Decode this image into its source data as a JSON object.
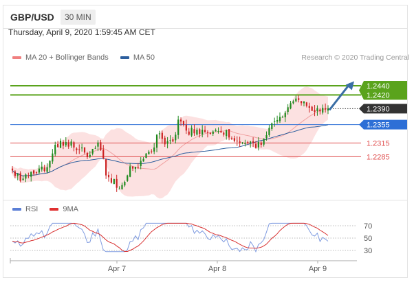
{
  "header": {
    "symbol": "GBP/USD",
    "timeframe": "30 MIN"
  },
  "timestamp": "Thursday, April 9, 2020 1:59:45 AM CET",
  "legend": {
    "items": [
      {
        "label": "MA 20 + Bollinger Bands",
        "color": "#f08080"
      },
      {
        "label": "MA 50",
        "color": "#2d5f9e"
      }
    ],
    "credit": "Research © 2020 Trading Central"
  },
  "rsi_legend": {
    "items": [
      {
        "label": "RSI",
        "color": "#5b7fd6"
      },
      {
        "label": "9MA",
        "color": "#e03030"
      }
    ]
  },
  "colors": {
    "green": "#5aa31c",
    "blue": "#2d6fd6",
    "red": "#e05050",
    "current": "#333333",
    "candle_up": "#1f8a1f",
    "candle_down": "#cc2222",
    "band_fill": "#fbd7d7",
    "arrow": "#3a6ea5"
  },
  "chart_data": [
    {
      "type": "candlestick",
      "title": "GBP/USD",
      "interval": "30 MIN",
      "x_ticks": [
        "Apr 7",
        "Apr 8",
        "Apr 9"
      ],
      "ylim": [
        1.22,
        1.247
      ],
      "levels": [
        {
          "value": 1.244,
          "label": "1.2440",
          "style": "resistance",
          "color": "#5aa31c"
        },
        {
          "value": 1.242,
          "label": "1.2420",
          "style": "resistance",
          "color": "#5aa31c"
        },
        {
          "value": 1.239,
          "label": "1.2390",
          "style": "current",
          "color": "#333333"
        },
        {
          "value": 1.2355,
          "label": "1.2355",
          "style": "pivot",
          "color": "#2d6fd6"
        },
        {
          "value": 1.2315,
          "label": "1.2315",
          "style": "support",
          "color": "#e05050"
        },
        {
          "value": 1.2285,
          "label": "1.2285",
          "style": "support",
          "color": "#e05050"
        }
      ],
      "series": [
        {
          "name": "Price",
          "points": [
            1.2255,
            1.2243,
            1.2248,
            1.2232,
            1.2237,
            1.2246,
            1.2243,
            1.2252,
            1.2248,
            1.225,
            1.2259,
            1.2263,
            1.2254,
            1.2262,
            1.2276,
            1.2292,
            1.2311,
            1.2306,
            1.232,
            1.2309,
            1.2317,
            1.2307,
            1.2318,
            1.2305,
            1.2299,
            1.2301,
            1.2305,
            1.2294,
            1.2284,
            1.2289,
            1.2302,
            1.2304,
            1.2316,
            1.2299,
            1.2282,
            1.2244,
            1.224,
            1.2228,
            1.2236,
            1.2217,
            1.2215,
            1.2223,
            1.223,
            1.2244,
            1.2264,
            1.2259,
            1.2263,
            1.2262,
            1.2276,
            1.228,
            1.2292,
            1.2296,
            1.2296,
            1.2305,
            1.2333,
            1.2336,
            1.2324,
            1.2312,
            1.2319,
            1.2321,
            1.2318,
            1.2333,
            1.2366,
            1.2362,
            1.2355,
            1.2342,
            1.2333,
            1.2348,
            1.2336,
            1.2344,
            1.2335,
            1.2344,
            1.2339,
            1.2337,
            1.2335,
            1.234,
            1.2343,
            1.2341,
            1.2338,
            1.2333,
            1.2343,
            1.2327,
            1.2324,
            1.2319,
            1.2319,
            1.2315,
            1.2316,
            1.2314,
            1.2316,
            1.2318,
            1.2314,
            1.2304,
            1.2317,
            1.2311,
            1.2324,
            1.2332,
            1.2348,
            1.2358,
            1.2362,
            1.2365,
            1.2372,
            1.2372,
            1.2381,
            1.2393,
            1.2402,
            1.2406,
            1.2412,
            1.2409,
            1.2402,
            1.2406,
            1.2396,
            1.2392,
            1.2385,
            1.2383,
            1.2391,
            1.2384,
            1.2392,
            1.2388,
            1.239
          ]
        },
        {
          "name": "MA 20 + Bollinger Bands",
          "mid_start": 1.227,
          "mid_end": 1.2365
        },
        {
          "name": "MA 50",
          "start": 1.2278,
          "end": 1.2355
        }
      ]
    },
    {
      "type": "line",
      "title": "RSI",
      "ylim": [
        20,
        80
      ],
      "y_ticks": [
        70,
        50,
        30
      ],
      "series": [
        {
          "name": "RSI"
        },
        {
          "name": "9MA"
        }
      ]
    }
  ]
}
